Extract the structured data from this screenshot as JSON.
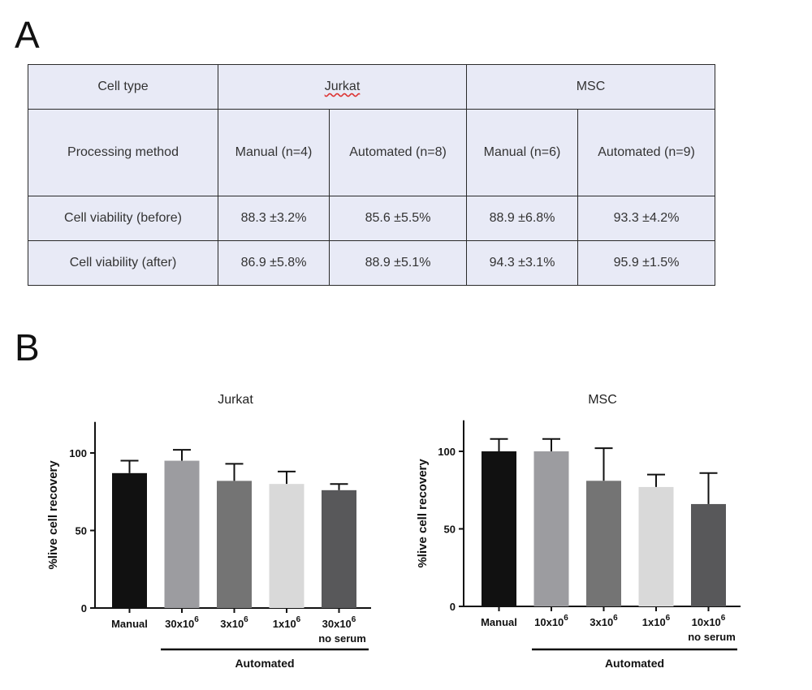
{
  "panels": {
    "a": "A",
    "b": "B"
  },
  "table": {
    "header_label": "Cell type",
    "groups": [
      "Jurkat",
      "MSC"
    ],
    "method_label": "Processing method",
    "methods": [
      "Manual (n=4)",
      "Automated (n=8)",
      "Manual (n=6)",
      "Automated (n=9)"
    ],
    "rows": [
      {
        "label": "Cell viability (before)",
        "values": [
          "88.3 ±3.2%",
          "85.6 ±5.5%",
          "88.9 ±6.8%",
          "93.3 ±4.2%"
        ]
      },
      {
        "label": "Cell viability (after)",
        "values": [
          "86.9 ±5.8%",
          "88.9 ±5.1%",
          "94.3 ±3.1%",
          "95.9 ±1.5%"
        ]
      }
    ]
  },
  "chart_data": [
    {
      "type": "bar",
      "title": "Jurkat",
      "ylabel": "%live cell recovery",
      "ylim": [
        0,
        120
      ],
      "yticks": [
        0,
        50,
        100
      ],
      "categories": [
        {
          "main": "Manual",
          "exp": "",
          "sub": ""
        },
        {
          "main": "30x10",
          "exp": "6",
          "sub": ""
        },
        {
          "main": "3x10",
          "exp": "6",
          "sub": ""
        },
        {
          "main": "1x10",
          "exp": "6",
          "sub": ""
        },
        {
          "main": "30x10",
          "exp": "6",
          "sub": "no serum"
        }
      ],
      "values": [
        87,
        95,
        82,
        80,
        76
      ],
      "errors": [
        8,
        7,
        11,
        8,
        4
      ],
      "colors": [
        "#111111",
        "#9c9ca0",
        "#747474",
        "#d9d9d9",
        "#58585a"
      ],
      "group_label": "Automated"
    },
    {
      "type": "bar",
      "title": "MSC",
      "ylabel": "%live cell recovery",
      "ylim": [
        0,
        120
      ],
      "yticks": [
        0,
        50,
        100
      ],
      "categories": [
        {
          "main": "Manual",
          "exp": "",
          "sub": ""
        },
        {
          "main": "10x10",
          "exp": "6",
          "sub": ""
        },
        {
          "main": "3x10",
          "exp": "6",
          "sub": ""
        },
        {
          "main": "1x10",
          "exp": "6",
          "sub": ""
        },
        {
          "main": "10x10",
          "exp": "6",
          "sub": "no serum"
        }
      ],
      "values": [
        100,
        100,
        81,
        77,
        66
      ],
      "errors": [
        8,
        8,
        21,
        8,
        20
      ],
      "colors": [
        "#111111",
        "#9c9ca0",
        "#747474",
        "#d9d9d9",
        "#58585a"
      ],
      "group_label": "Automated"
    }
  ]
}
